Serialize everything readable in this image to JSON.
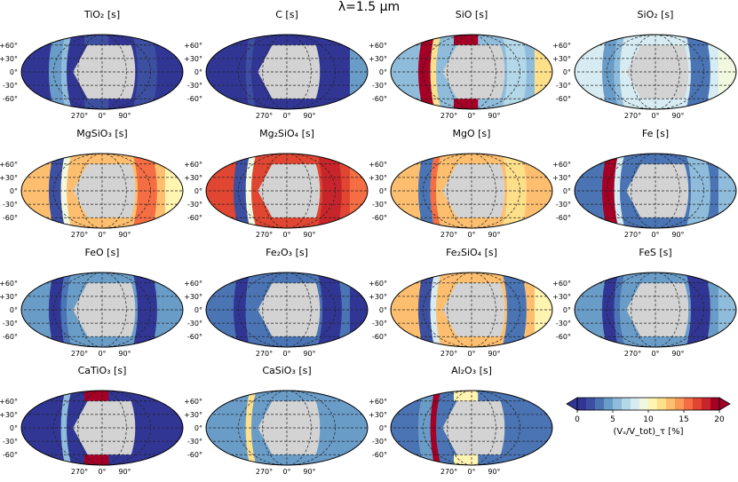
{
  "suptitle": "λ=1.5 μm",
  "chart_data": {
    "type": "heatmap",
    "projection": "Robinson-like map panels",
    "lat_ticks": [
      "+60°",
      "+30°",
      "0°",
      "-30°",
      "-60°"
    ],
    "lon_ticks": [
      "270°",
      "0°",
      "90°"
    ],
    "grid": true,
    "masked_color": "#d3d3d3",
    "panels": [
      {
        "title": "TiO₂ [s]",
        "label_axes": true,
        "base": 0.6,
        "west_band": 4,
        "east_band": 1.5,
        "polar_patch": 2,
        "bright_edge": 6,
        "rim_east": 0
      },
      {
        "title": "C [s]",
        "label_axes": true,
        "base": 0.6,
        "west_band": 0.8,
        "east_band": 1.2,
        "polar_patch": 0,
        "bright_edge": 2,
        "rim_east": 4
      },
      {
        "title": "SiO [s]",
        "label_axes": true,
        "base": 6,
        "west_band": 19.5,
        "east_band": 7,
        "polar_patch": 19,
        "bright_edge": 12,
        "rim_east": 12
      },
      {
        "title": "SiO₂ [s]",
        "label_axes": true,
        "base": 8.5,
        "west_band": 4,
        "east_band": 3,
        "polar_patch": 0,
        "bright_edge": 6,
        "rim_east": 9
      },
      {
        "title": "MgSiO₃ [s]",
        "label_axes": true,
        "base": 13,
        "west_band": 2,
        "east_band": 16,
        "polar_patch": 0,
        "bright_edge": 9,
        "rim_east": 10
      },
      {
        "title": "Mg₂SiO₄ [s]",
        "label_axes": true,
        "base": 17,
        "west_band": 2,
        "east_band": 18.5,
        "polar_patch": 0,
        "bright_edge": 9,
        "rim_east": 16
      },
      {
        "title": "MgO [s]",
        "label_axes": true,
        "base": 13,
        "west_band": 3,
        "east_band": 12,
        "polar_patch": 0,
        "bright_edge": 15,
        "rim_east": 13
      },
      {
        "title": "Fe [s]",
        "label_axes": true,
        "base": 3,
        "west_band": 19.5,
        "east_band": 5,
        "polar_patch": 0,
        "bright_edge": 8,
        "rim_east": 5
      },
      {
        "title": "FeO [s]",
        "label_axes": true,
        "base": 4.2,
        "west_band": 1,
        "east_band": 1.2,
        "polar_patch": 0,
        "bright_edge": 3,
        "rim_east": 4
      },
      {
        "title": "Fe₂O₃ [s]",
        "label_axes": true,
        "base": 3.6,
        "west_band": 1,
        "east_band": 0.9,
        "polar_patch": 0,
        "bright_edge": 3,
        "rim_east": 1
      },
      {
        "title": "Fe₂SiO₄ [s]",
        "label_axes": true,
        "base": 12.5,
        "west_band": 1.5,
        "east_band": 2.5,
        "polar_patch": 0,
        "bright_edge": 8,
        "rim_east": 10
      },
      {
        "title": "FeS [s]",
        "label_axes": true,
        "base": 4.5,
        "west_band": 0.8,
        "east_band": 1.2,
        "polar_patch": 0,
        "bright_edge": 3,
        "rim_east": 5
      },
      {
        "title": "CaTiO₃ [s]",
        "label_axes": true,
        "base": 0.8,
        "west_band": 1.2,
        "east_band": 1,
        "polar_patch": 19,
        "bright_edge": 5,
        "rim_east": 1
      },
      {
        "title": "CaSiO₃ [s]",
        "label_axes": true,
        "base": 4,
        "west_band": 4.5,
        "east_band": 4.2,
        "polar_patch": 0,
        "bright_edge": 12,
        "rim_east": 4.5
      },
      {
        "title": "Al₂O₃ [s]",
        "label_axes": true,
        "base": 3.2,
        "west_band": 4,
        "east_band": 3.5,
        "polar_patch": 10,
        "bright_edge": 19,
        "rim_east": 3.5
      }
    ],
    "colorbar": {
      "label": "(Vₛ/V_tot)_τ [%]",
      "ticks": [
        0,
        5,
        10,
        15,
        20
      ],
      "range": [
        0,
        20
      ],
      "extend": "both",
      "colormap": "RdYlBu_r"
    }
  }
}
